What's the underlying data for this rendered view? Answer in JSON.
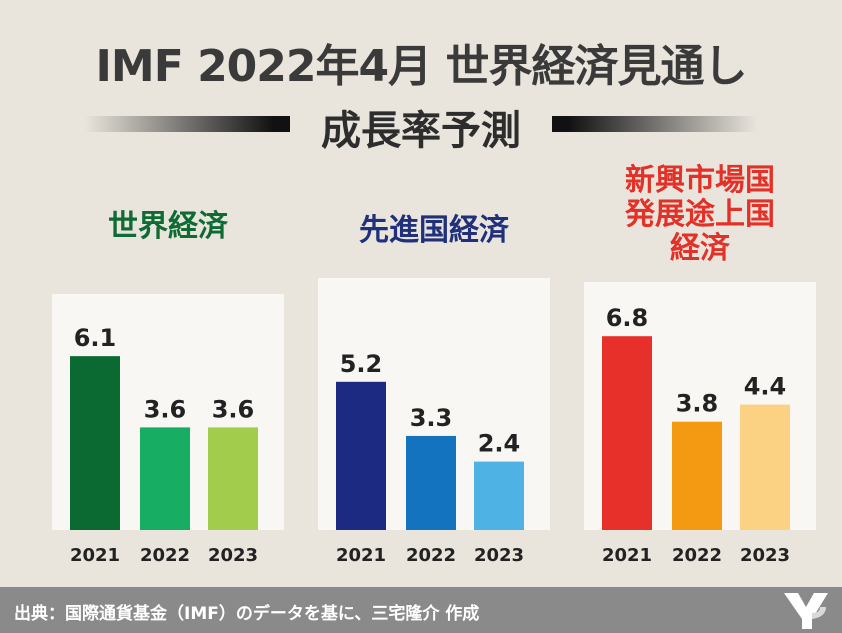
{
  "title": "IMF 2022年4月 世界経済見通し",
  "subtitle": "成長率予測",
  "footer": {
    "source": "出典：国際通貨基金（IMF）のデータを基に、三宅隆介 作成"
  },
  "chart_data": [
    {
      "type": "bar",
      "label": "世界経済",
      "label_color": "#0e6b34",
      "categories": [
        "2021",
        "2022",
        "2023"
      ],
      "values": [
        6.1,
        3.6,
        3.6
      ],
      "colors": [
        "#0b6a32",
        "#17ad63",
        "#a2cd4c"
      ]
    },
    {
      "type": "bar",
      "label": "先進国経済",
      "label_color": "#20307a",
      "categories": [
        "2021",
        "2022",
        "2023"
      ],
      "values": [
        5.2,
        3.3,
        2.4
      ],
      "colors": [
        "#1d2a82",
        "#1473bf",
        "#4eb3e4"
      ]
    },
    {
      "type": "bar",
      "label": "新興市場国\n発展途上国\n経済",
      "label_color": "#e33127",
      "categories": [
        "2021",
        "2022",
        "2023"
      ],
      "values": [
        6.8,
        3.8,
        4.4
      ],
      "colors": [
        "#e8302a",
        "#f39a12",
        "#fbd283"
      ]
    }
  ]
}
